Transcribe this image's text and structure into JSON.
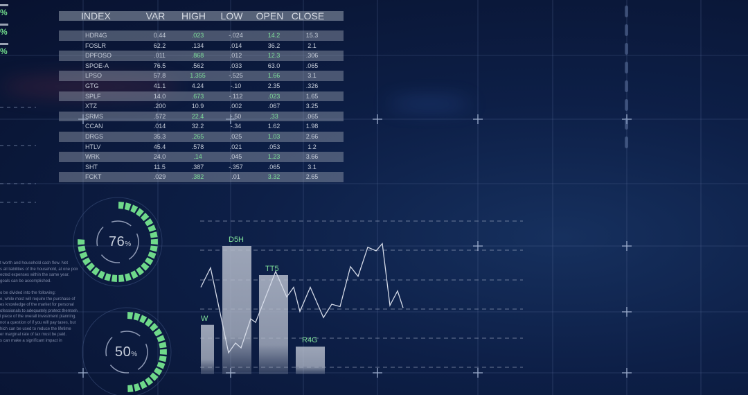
{
  "colors": {
    "accent_green": "#6fd98a",
    "grid": "#5a6e9a",
    "bar": "#b5bccb",
    "background": "#0b1838"
  },
  "table": {
    "headers": [
      "INDEX",
      "VAR",
      "HIGH",
      "LOW",
      "OPEN",
      "CLOSE"
    ],
    "rows": [
      [
        "HDR4G",
        "0.44",
        ".023",
        "-.024",
        "14.2",
        "15.3"
      ],
      [
        "FOSLR",
        "62.2",
        ".134",
        ".014",
        "36.2",
        "2.1"
      ],
      [
        "DPFOSO",
        ".011",
        ".868",
        ".012",
        "12.3",
        ".306"
      ],
      [
        "SPOE-A",
        "76.5",
        ".562",
        ".033",
        "63.0",
        ".065"
      ],
      [
        "LPSO",
        "57.8",
        "1.355",
        "-.525",
        "1.66",
        "3.1"
      ],
      [
        "GTG",
        "41.1",
        "4.24",
        "-.10",
        "2.35",
        ".326"
      ],
      [
        "SPLF",
        "14.0",
        ".673",
        "-.112",
        ".023",
        "1.65"
      ],
      [
        "XTZ",
        ".200",
        "10.9",
        ".002",
        ".067",
        "3.25"
      ],
      [
        "SRMS",
        ".572",
        "22.4",
        "-.50",
        ".33",
        ".065"
      ],
      [
        "CCAN",
        ".014",
        "32.2",
        "-.34",
        "1.62",
        "1.98"
      ],
      [
        "DRGS",
        "35.3",
        ".265",
        ".025",
        "1.03",
        "2.66"
      ],
      [
        "HTLV",
        "45.4",
        ".578",
        ".021",
        ".053",
        "1.2"
      ],
      [
        "WRK",
        "24.0",
        ".14",
        ".045",
        "1.23",
        "3.66"
      ],
      [
        "SHT",
        "11.5",
        ".387",
        "-.357",
        ".065",
        "3.1"
      ],
      [
        "FCKT",
        ".029",
        ".382",
        ".01",
        "3.32",
        "2.65"
      ]
    ]
  },
  "side_percents": [
    "%",
    "%",
    "%"
  ],
  "gauges": [
    {
      "value": 76,
      "label": "76",
      "unit": "%"
    },
    {
      "value": 50,
      "label": "50",
      "unit": "%"
    }
  ],
  "left_text": [
    "t worth and household cash flow. Net",
    "s all liabilities of the household, at one point",
    "ected expenses within the same year.",
    "goals can be accomplished.",
    "",
    "o be divided into the following:",
    "e, while most will require the purchase of",
    "es knowledge of the market for personal",
    "ofessionals to adequately protect themselves.",
    "l piece of the overall investment planning.",
    "not a question of if you will pay taxes, but",
    "hich can be used to reduce the lifetime",
    "er marginal rate of tax must be paid.",
    "s can make a significant impact in"
  ],
  "chart_data": {
    "type": "bar",
    "categories": [
      "W",
      "D5H",
      "TT5",
      "R4G"
    ],
    "values": [
      35,
      100,
      76,
      17
    ],
    "ylim": [
      0,
      100
    ],
    "grid": true,
    "overlay_line": {
      "type": "line",
      "values": [
        66,
        82,
        12,
        20,
        16,
        40,
        37,
        79,
        58,
        66,
        46,
        66,
        41,
        52,
        50,
        83,
        75,
        99,
        96,
        102,
        51,
        63,
        49
      ]
    }
  }
}
